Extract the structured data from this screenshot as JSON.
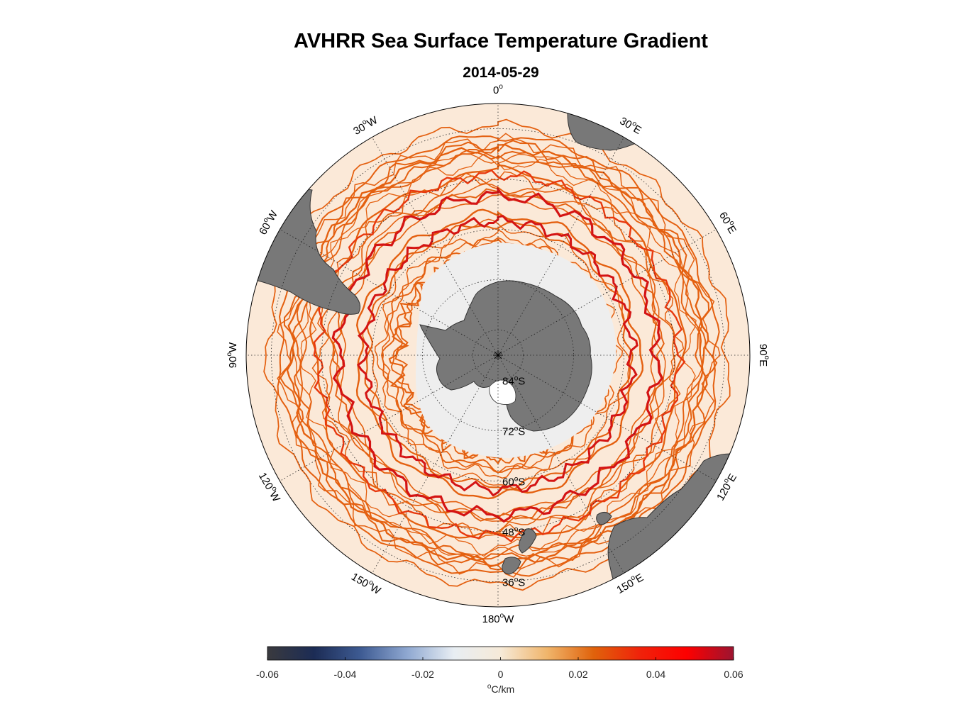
{
  "chart_data": {
    "type": "heatmap",
    "projection": "south-polar-stereographic",
    "title": "AVHRR Sea Surface Temperature Gradient",
    "subtitle": "2014-05-29",
    "meridian_labels": [
      {
        "lon": 0,
        "text": "0",
        "deg": "o",
        "suffix": ""
      },
      {
        "lon": 30,
        "text": "30",
        "deg": "o",
        "suffix": "E"
      },
      {
        "lon": 60,
        "text": "60",
        "deg": "o",
        "suffix": "E"
      },
      {
        "lon": 90,
        "text": "90",
        "deg": "o",
        "suffix": "E"
      },
      {
        "lon": 120,
        "text": "120",
        "deg": "o",
        "suffix": "E"
      },
      {
        "lon": 150,
        "text": "150",
        "deg": "o",
        "suffix": "E"
      },
      {
        "lon": 180,
        "text": "180",
        "deg": "o",
        "suffix": "W"
      },
      {
        "lon": -150,
        "text": "150",
        "deg": "o",
        "suffix": "W"
      },
      {
        "lon": -120,
        "text": "120",
        "deg": "o",
        "suffix": "W"
      },
      {
        "lon": -90,
        "text": "90",
        "deg": "o",
        "suffix": "W"
      },
      {
        "lon": -60,
        "text": "60",
        "deg": "o",
        "suffix": "W"
      },
      {
        "lon": -30,
        "text": "30",
        "deg": "o",
        "suffix": "W"
      }
    ],
    "parallel_labels": [
      {
        "lat": -84,
        "text": "84",
        "deg": "o",
        "suffix": "S"
      },
      {
        "lat": -72,
        "text": "72",
        "deg": "o",
        "suffix": "S"
      },
      {
        "lat": -60,
        "text": "60",
        "deg": "o",
        "suffix": "S"
      },
      {
        "lat": -48,
        "text": "48",
        "deg": "o",
        "suffix": "S"
      },
      {
        "lat": -36,
        "text": "36",
        "deg": "o",
        "suffix": "S"
      }
    ],
    "lat_range": [
      -90,
      -30
    ],
    "grid": true,
    "colorbar": {
      "label_prefix": "o",
      "label": "C/km",
      "range": [
        -0.06,
        0.06
      ],
      "ticks": [
        -0.06,
        -0.04,
        -0.02,
        0,
        0.02,
        0.04,
        0.06
      ],
      "tick_labels": [
        "-0.06",
        "-0.04",
        "-0.02",
        "0",
        "0.02",
        "0.04",
        "0.06"
      ],
      "colors": [
        "#3a3a3e",
        "#1c2c55",
        "#3e5b93",
        "#8fa8d1",
        "#e8eef3",
        "#f6ead8",
        "#f0b56b",
        "#e0620b",
        "#f0220a",
        "#fd0000",
        "#9c1430"
      ]
    },
    "colors": {
      "land": "#787878",
      "sea_ice": "#eeeeee",
      "ocean_background": "#fbe9d8",
      "front_strong": "#d41414",
      "front_medium": "#e46010"
    }
  }
}
